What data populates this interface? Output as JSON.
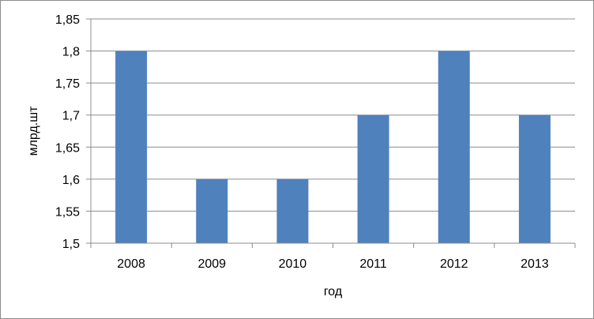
{
  "chart_data": {
    "type": "bar",
    "categories": [
      "2008",
      "2009",
      "2010",
      "2011",
      "2012",
      "2013"
    ],
    "values": [
      1.8,
      1.6,
      1.6,
      1.7,
      1.8,
      1.7
    ],
    "title": "",
    "xlabel": "год",
    "ylabel": "млрд.шт",
    "ylim": [
      1.5,
      1.85
    ],
    "yticks": [
      1.5,
      1.55,
      1.6,
      1.65,
      1.7,
      1.75,
      1.8,
      1.85
    ],
    "ytick_labels": [
      "1,5",
      "1,55",
      "1,6",
      "1,65",
      "1,7",
      "1,75",
      "1,8",
      "1,85"
    ],
    "grid": true,
    "legend": "none",
    "colors": {
      "bar": "#4f81bd",
      "grid": "#8c8c8c",
      "axis": "#8c8c8c",
      "frame": "#8c8c8c"
    }
  }
}
